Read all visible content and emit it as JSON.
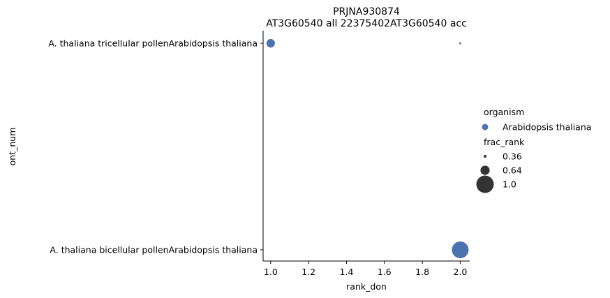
{
  "chart_data": {
    "type": "scatter",
    "title_line1": "PRJNA930874",
    "title_line2": "AT3G60540 all 22375402AT3G60540 acc",
    "xlabel": "rank_don",
    "ylabel": "ont_num",
    "xlim": [
      0.96,
      2.05
    ],
    "x_ticks": [
      {
        "value": 1.0,
        "label": "1.0",
        "color": "#ff0000"
      },
      {
        "value": 1.2,
        "label": "1.2",
        "color": "#000000"
      },
      {
        "value": 1.4,
        "label": "1.4",
        "color": "#000000"
      },
      {
        "value": 1.6,
        "label": "1.6",
        "color": "#000000"
      },
      {
        "value": 1.8,
        "label": "1.8",
        "color": "#000000"
      },
      {
        "value": 2.0,
        "label": "2.0",
        "color": "#0000ff"
      }
    ],
    "categories": [
      "A. thaliana tricellular pollenArabidopsis thaliana",
      "A. thaliana bicellular pollenArabidopsis thaliana"
    ],
    "points": [
      {
        "x": 1.0,
        "category": 0,
        "frac_rank": 0.64,
        "organism": "Arabidopsis thaliana"
      },
      {
        "x": 2.0,
        "category": 0,
        "frac_rank": 0.36,
        "organism": "Arabidopsis thaliana"
      },
      {
        "x": 2.0,
        "category": 1,
        "frac_rank": 1.0,
        "organism": "Arabidopsis thaliana"
      }
    ],
    "point_color": "#4c72b0",
    "legend": {
      "hue_title": "organism",
      "hue_items": [
        {
          "label": "Arabidopsis thaliana",
          "color": "#4c72b0"
        }
      ],
      "size_title": "frac_rank",
      "size_items": [
        {
          "label": "0.36",
          "value": 0.36
        },
        {
          "label": "0.64",
          "value": 0.64
        },
        {
          "label": "1.0",
          "value": 1.0
        }
      ],
      "size_color": "#333333",
      "placement": "right"
    }
  }
}
